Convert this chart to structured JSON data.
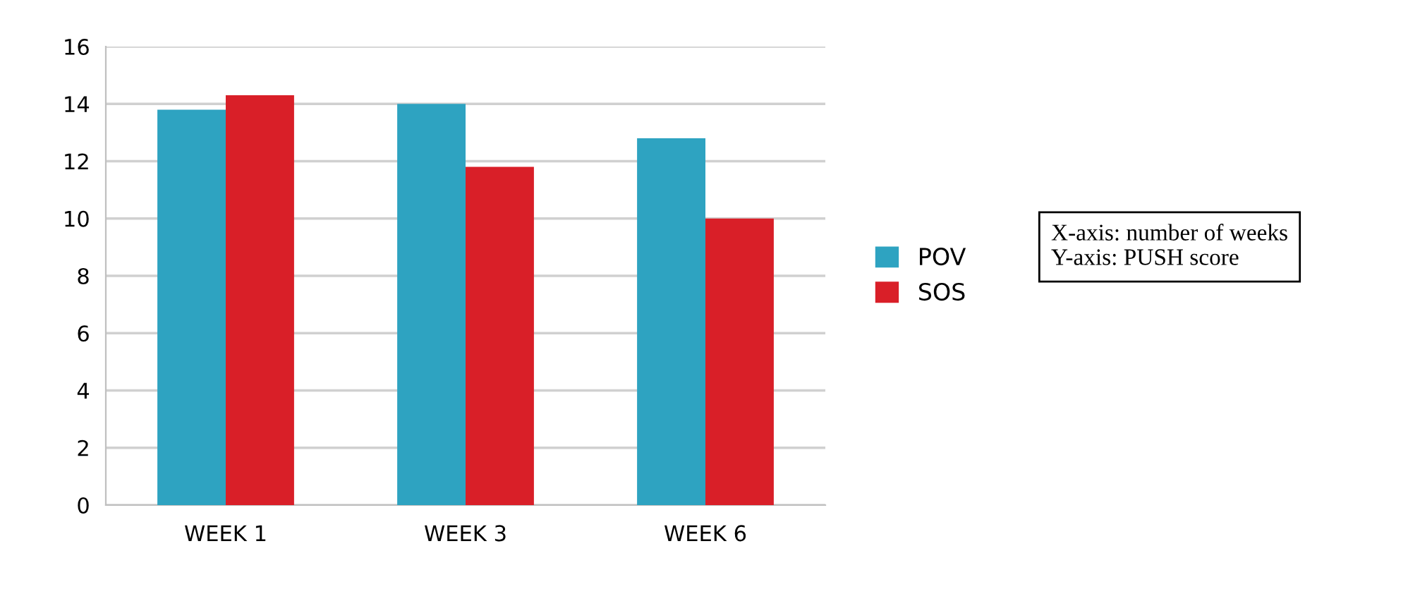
{
  "chart_data": {
    "type": "bar",
    "categories": [
      "WEEK 1",
      "WEEK 3",
      "WEEK 6"
    ],
    "series": [
      {
        "name": "POV",
        "color": "#2ea3c1",
        "values": [
          13.8,
          14.0,
          12.8
        ]
      },
      {
        "name": "SOS",
        "color": "#d91f28",
        "values": [
          14.3,
          11.8,
          10.0
        ]
      }
    ],
    "ylim": [
      0,
      16
    ],
    "yticks": [
      0,
      2,
      4,
      6,
      8,
      10,
      12,
      14,
      16
    ],
    "grid": "y",
    "legend": "right",
    "annotations": [
      "X-axis: number of weeks\nY-axis: PUSH score"
    ]
  }
}
